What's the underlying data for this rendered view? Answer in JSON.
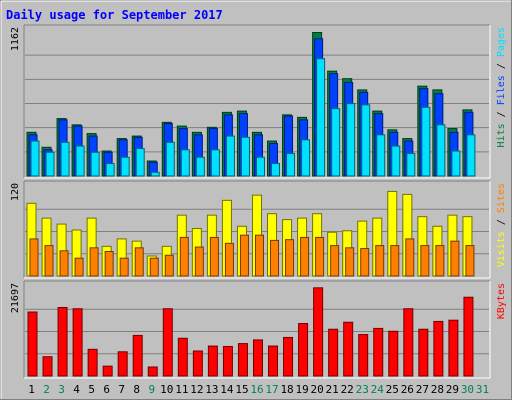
{
  "chart_data": {
    "type": "bar",
    "title": "Daily usage for September 2017",
    "categories": [
      "1",
      "2",
      "3",
      "4",
      "5",
      "6",
      "7",
      "8",
      "9",
      "10",
      "11",
      "12",
      "13",
      "14",
      "15",
      "16",
      "17",
      "18",
      "19",
      "20",
      "21",
      "22",
      "23",
      "24",
      "25",
      "26",
      "27",
      "28",
      "29",
      "30",
      "31"
    ],
    "weekend_days": [
      "2",
      "3",
      "9",
      "16",
      "17",
      "23",
      "24",
      "30",
      "31"
    ],
    "grid": true,
    "panels": [
      {
        "id": "pages-files-hits",
        "ymax_label": "1162",
        "ylim": [
          0,
          1162
        ],
        "legend_right": [
          "Hits",
          "Files",
          "Pages"
        ],
        "series": [
          {
            "name": "Hits",
            "color": "#008040",
            "values": [
              350,
              230,
              460,
              410,
              340,
              200,
              300,
              320,
              120,
              430,
              400,
              350,
              390,
              510,
              520,
              350,
              280,
              490,
              470,
              1150,
              840,
              780,
              690,
              520,
              370,
              300,
              720,
              690,
              380,
              530,
              0
            ]
          },
          {
            "name": "Files",
            "color": "#0040ff",
            "values": [
              330,
              210,
              450,
              400,
              320,
              190,
              290,
              310,
              110,
              420,
              380,
              330,
              380,
              490,
              500,
              330,
              260,
              480,
              450,
              1100,
              820,
              750,
              670,
              500,
              350,
              280,
              700,
              660,
              350,
              510,
              0
            ]
          },
          {
            "name": "Pages",
            "color": "#00e0ff",
            "values": [
              280,
              190,
              270,
              240,
              190,
              100,
              150,
              220,
              30,
              270,
              210,
              150,
              210,
              320,
              310,
              150,
              100,
              180,
              290,
              940,
              540,
              580,
              570,
              330,
              240,
              180,
              550,
              410,
              200,
              330,
              0
            ]
          }
        ]
      },
      {
        "id": "sites-visits",
        "ymax_label": "120",
        "ylim": [
          0,
          120
        ],
        "legend_right": [
          "Visits",
          "Sites"
        ],
        "series": [
          {
            "name": "Visits",
            "color": "#ffff00",
            "values": [
              98,
              78,
              70,
              62,
              78,
              40,
              50,
              47,
              27,
              40,
              82,
              64,
              82,
              102,
              67,
              109,
              84,
              76,
              78,
              84,
              59,
              61,
              74,
              78,
              114,
              110,
              80,
              67,
              82,
              80,
              0
            ]
          },
          {
            "name": "Sites",
            "color": "#ff8000",
            "values": [
              50,
              41,
              34,
              24,
              38,
              33,
              24,
              38,
              24,
              28,
              52,
              39,
              52,
              44,
              55,
              55,
              48,
              49,
              52,
              52,
              41,
              38,
              37,
              41,
              41,
              50,
              41,
              41,
              47,
              41,
              0
            ]
          }
        ]
      },
      {
        "id": "kbytes",
        "ymax_label": "21697",
        "ylim": [
          0,
          21697
        ],
        "legend_right": [
          "KBytes"
        ],
        "series": [
          {
            "name": "KBytes",
            "color": "#ff0000",
            "values": [
              15600,
              4700,
              16700,
              16400,
              6500,
              2400,
              5900,
              9900,
              2200,
              16400,
              9200,
              6100,
              7300,
              7200,
              7900,
              8800,
              7300,
              9400,
              12800,
              21500,
              11400,
              13100,
              10100,
              11600,
              10900,
              16400,
              11400,
              13300,
              13600,
              19200,
              0
            ]
          }
        ]
      }
    ]
  }
}
